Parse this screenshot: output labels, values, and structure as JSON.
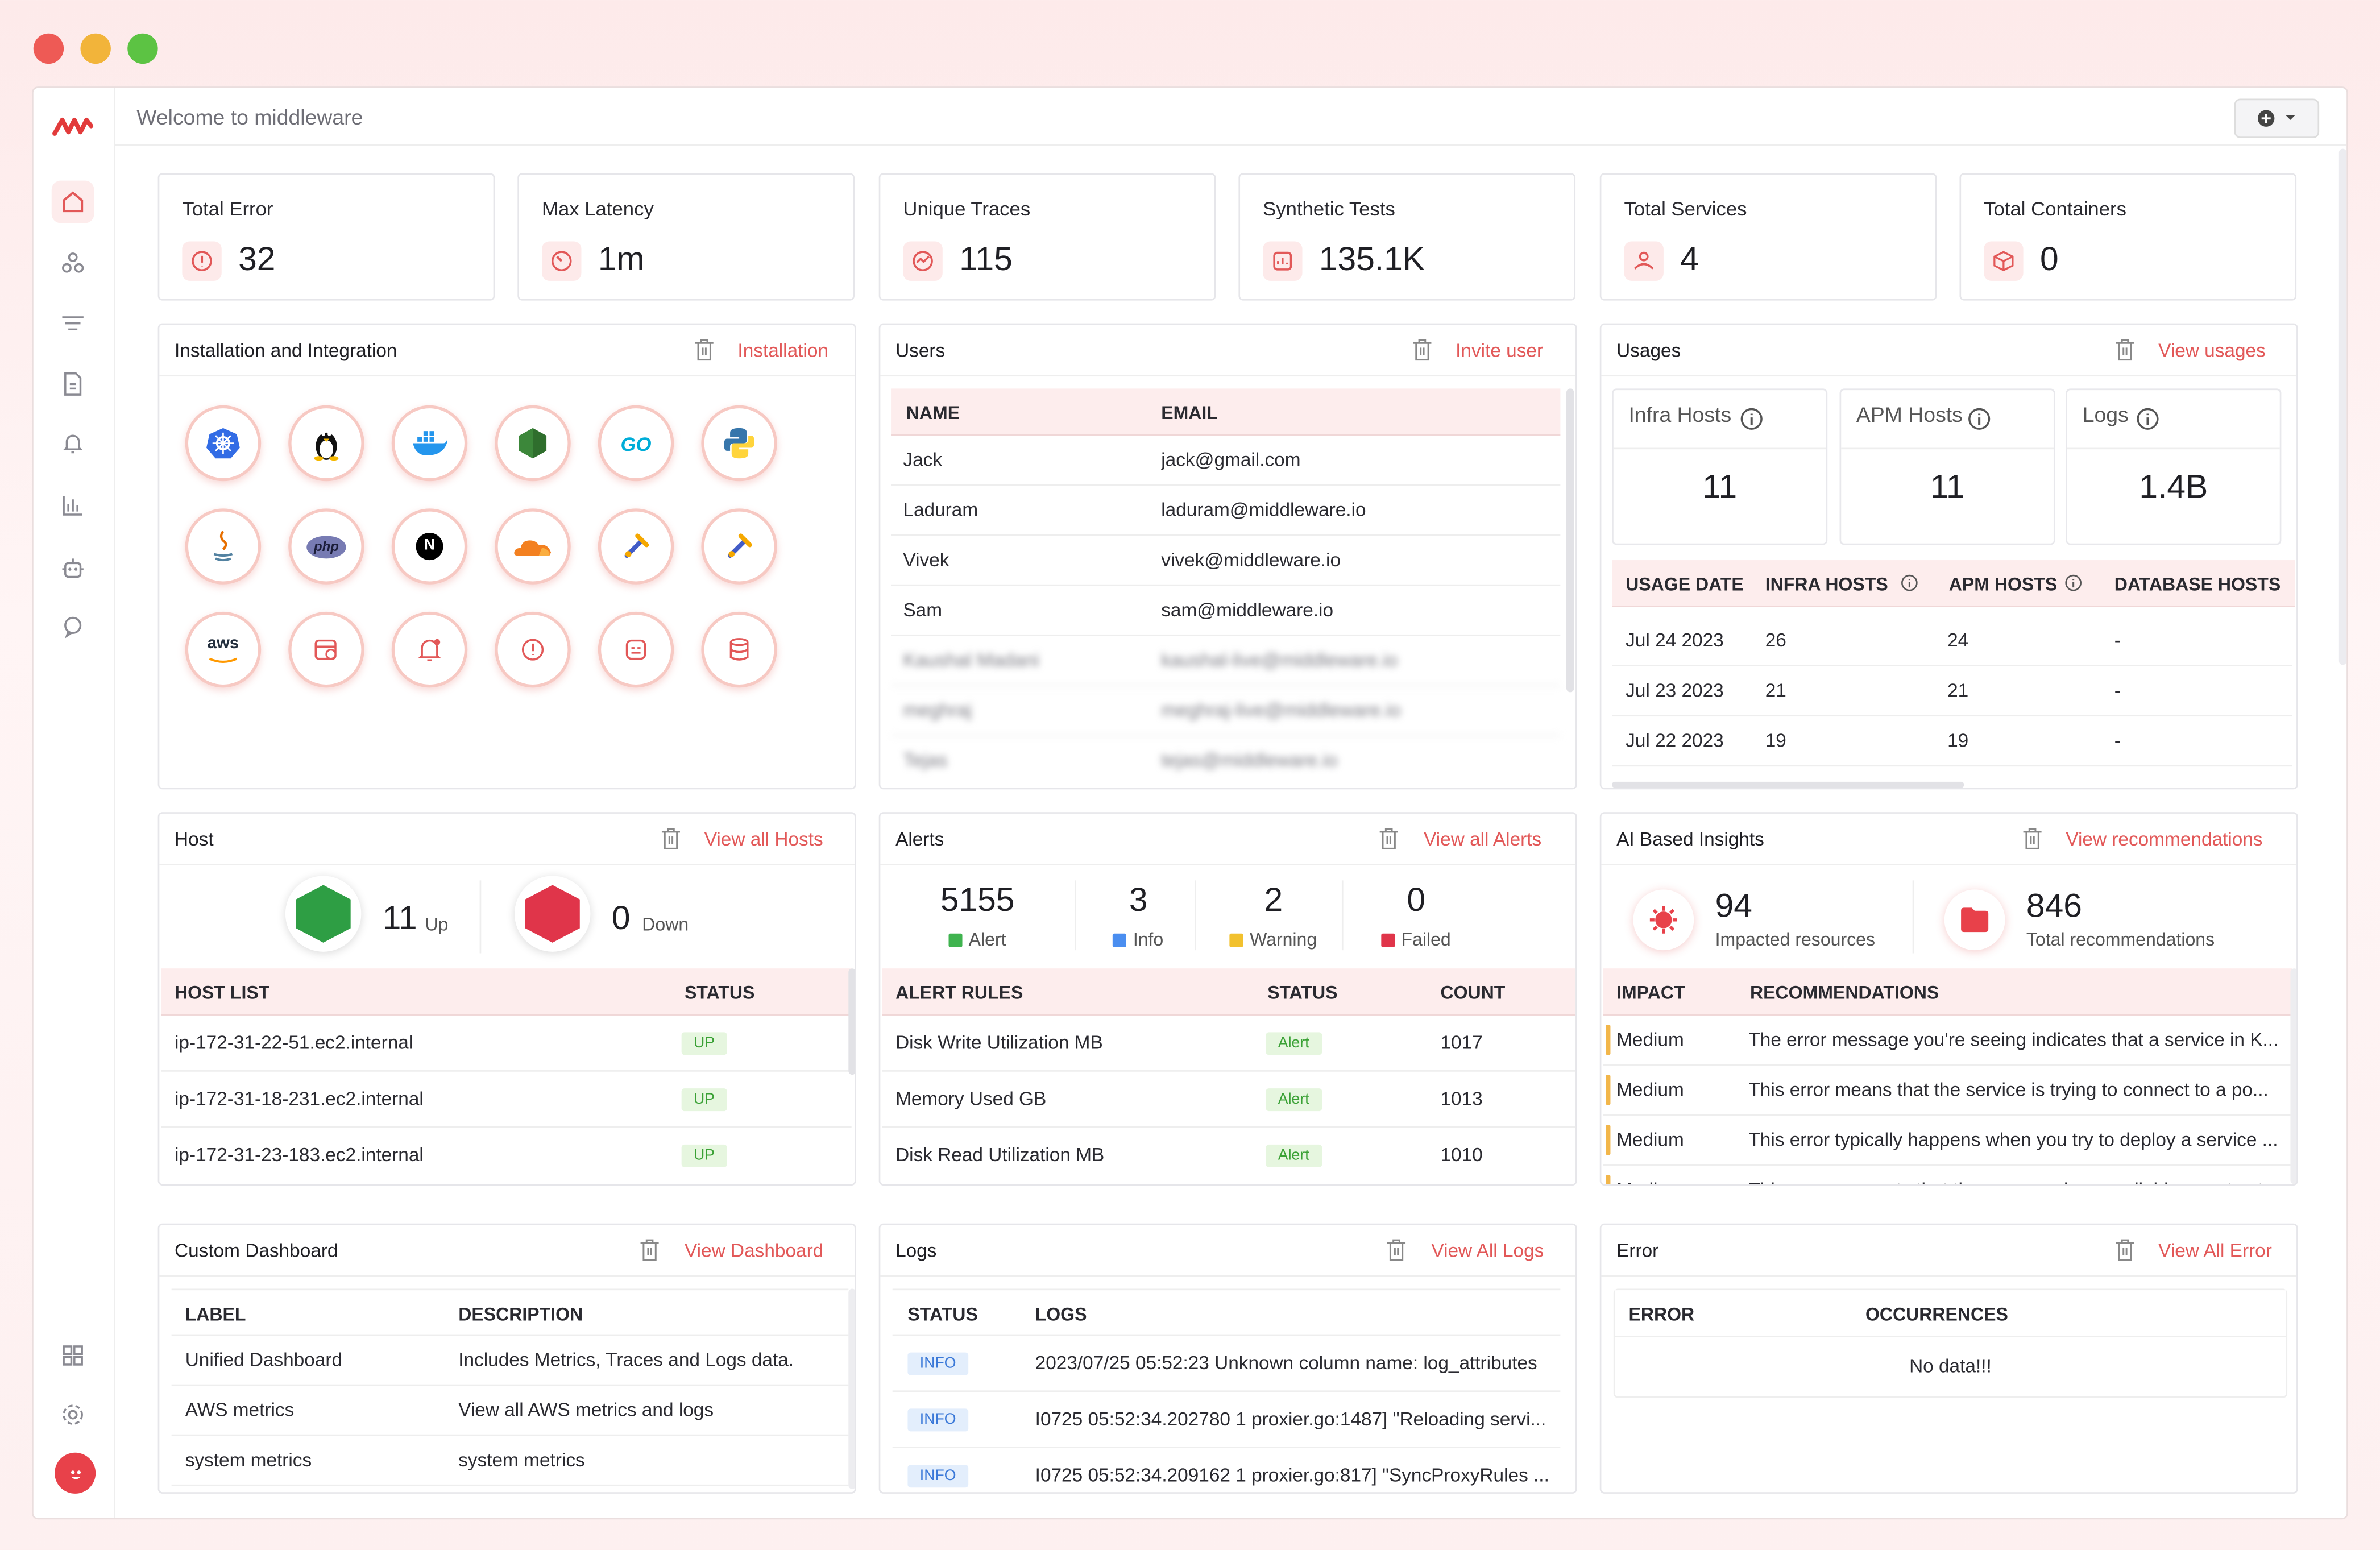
{
  "window": {
    "title": "Welcome to middleware"
  },
  "stats": [
    {
      "label": "Total Error",
      "value": "32",
      "icon": "error-icon"
    },
    {
      "label": "Max Latency",
      "value": "1m",
      "icon": "gauge-icon"
    },
    {
      "label": "Unique Traces",
      "value": "115",
      "icon": "trace-icon"
    },
    {
      "label": "Synthetic Tests",
      "value": "135.1K",
      "icon": "synthetic-icon"
    },
    {
      "label": "Total Services",
      "value": "4",
      "icon": "service-icon"
    },
    {
      "label": "Total Containers",
      "value": "0",
      "icon": "container-icon"
    }
  ],
  "installation": {
    "title": "Installation and Integration",
    "link": "Installation",
    "integrations": [
      "kubernetes",
      "linux",
      "docker",
      "nodejs",
      "go",
      "python",
      "java",
      "php",
      "nextjs",
      "cloudflare",
      "otel-collector",
      "otel-sdk",
      "aws",
      "synthetic",
      "alerts",
      "error",
      "custom",
      "database"
    ],
    "labels": {
      "go": "GO",
      "php": "php",
      "next": "N",
      "aws": "aws"
    }
  },
  "users": {
    "title": "Users",
    "link": "Invite user",
    "columns": [
      "NAME",
      "EMAIL"
    ],
    "rows": [
      {
        "name": "Jack",
        "email": "jack@gmail.com"
      },
      {
        "name": "Laduram",
        "email": "laduram@middleware.io"
      },
      {
        "name": "Vivek",
        "email": "vivek@middleware.io"
      },
      {
        "name": "Sam",
        "email": "sam@middleware.io"
      },
      {
        "name": "Kaushal Madani",
        "email": "kaushal-live@middleware.io"
      },
      {
        "name": "meghraj",
        "email": "meghraj-live@middleware.io"
      },
      {
        "name": "Tejas",
        "email": "tejas@middleware.io"
      }
    ]
  },
  "usages": {
    "title": "Usages",
    "link": "View usages",
    "metrics": [
      {
        "label": "Infra Hosts",
        "value": "11"
      },
      {
        "label": "APM Hosts",
        "value": "11"
      },
      {
        "label": "Logs",
        "value": "1.4B"
      }
    ],
    "columns": [
      "USAGE DATE",
      "INFRA HOSTS",
      "APM HOSTS",
      "DATABASE HOSTS"
    ],
    "rows": [
      {
        "date": "Jul 24 2023",
        "infra": "26",
        "apm": "24",
        "db": "-"
      },
      {
        "date": "Jul 23 2023",
        "infra": "21",
        "apm": "21",
        "db": "-"
      },
      {
        "date": "Jul 22 2023",
        "infra": "19",
        "apm": "19",
        "db": "-"
      }
    ]
  },
  "host": {
    "title": "Host",
    "link": "View all Hosts",
    "up_count": "11",
    "up_label": "Up",
    "down_count": "0",
    "down_label": "Down",
    "columns": [
      "HOST LIST",
      "STATUS"
    ],
    "rows": [
      {
        "host": "ip-172-31-22-51.ec2.internal",
        "status": "UP"
      },
      {
        "host": "ip-172-31-18-231.ec2.internal",
        "status": "UP"
      },
      {
        "host": "ip-172-31-23-183.ec2.internal",
        "status": "UP"
      }
    ],
    "colors": {
      "up": "#2e9e44",
      "down": "#e0354a"
    }
  },
  "alerts": {
    "title": "Alerts",
    "link": "View all Alerts",
    "summary": [
      {
        "value": "5155",
        "label": "Alert",
        "color": "#3fb34f"
      },
      {
        "value": "3",
        "label": "Info",
        "color": "#4a8ef0"
      },
      {
        "value": "2",
        "label": "Warning",
        "color": "#f2c12e"
      },
      {
        "value": "0",
        "label": "Failed",
        "color": "#e0354a"
      }
    ],
    "columns": [
      "ALERT RULES",
      "STATUS",
      "COUNT"
    ],
    "rows": [
      {
        "rule": "Disk Write Utilization MB",
        "status": "Alert",
        "count": "1017"
      },
      {
        "rule": "Memory Used GB",
        "status": "Alert",
        "count": "1013"
      },
      {
        "rule": "Disk Read Utilization MB",
        "status": "Alert",
        "count": "1010"
      }
    ]
  },
  "insights": {
    "title": "AI Based Insights",
    "link": "View recommendations",
    "impacted_value": "94",
    "impacted_label": "Impacted resources",
    "total_value": "846",
    "total_label": "Total recommendations",
    "columns": [
      "IMPACT",
      "RECOMMENDATIONS"
    ],
    "rows": [
      {
        "impact": "Medium",
        "text": "The error message you're seeing indicates that a service in K..."
      },
      {
        "impact": "Medium",
        "text": "This error means that the service is trying to connect to a po..."
      },
      {
        "impact": "Medium",
        "text": "This error typically happens when you try to deploy a service ..."
      },
      {
        "impact": "Medium",
        "text": "This error suggests that the resource is unavailable or not yet..."
      }
    ]
  },
  "custom_dashboard": {
    "title": "Custom Dashboard",
    "link": "View Dashboard",
    "columns": [
      "LABEL",
      "DESCRIPTION"
    ],
    "rows": [
      {
        "label": "Unified Dashboard",
        "desc": "Includes Metrics, Traces and Logs data."
      },
      {
        "label": "AWS metrics",
        "desc": "View all AWS metrics and logs"
      },
      {
        "label": "system metrics",
        "desc": "system metrics"
      }
    ]
  },
  "logs": {
    "title": "Logs",
    "link": "View All Logs",
    "columns": [
      "STATUS",
      "LOGS"
    ],
    "rows": [
      {
        "status": "INFO",
        "text": "2023/07/25 05:52:23 Unknown column name: log_attributes"
      },
      {
        "status": "INFO",
        "text": "I0725 05:52:34.202780 1 proxier.go:1487] \"Reloading servi..."
      },
      {
        "status": "INFO",
        "text": "I0725 05:52:34.209162 1 proxier.go:817] \"SyncProxyRules ..."
      }
    ]
  },
  "error_panel": {
    "title": "Error",
    "link": "View All Error",
    "columns": [
      "ERROR",
      "OCCURRENCES"
    ],
    "empty": "No data!!!"
  },
  "colors": {
    "accent": "#e25858",
    "header_bg": "#fdeded"
  }
}
